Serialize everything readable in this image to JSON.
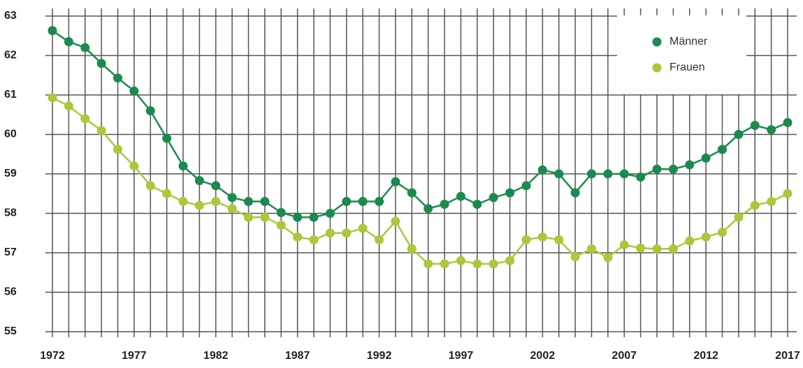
{
  "chart_data": {
    "type": "line",
    "x": [
      1972,
      1973,
      1974,
      1975,
      1976,
      1977,
      1978,
      1979,
      1980,
      1981,
      1982,
      1983,
      1984,
      1985,
      1986,
      1987,
      1988,
      1989,
      1990,
      1991,
      1992,
      1993,
      1994,
      1995,
      1996,
      1997,
      1998,
      1999,
      2000,
      2001,
      2002,
      2003,
      2004,
      2005,
      2006,
      2007,
      2008,
      2009,
      2010,
      2011,
      2012,
      2013,
      2014,
      2015,
      2016,
      2017
    ],
    "series": [
      {
        "name": "Männer",
        "color": "#1a8a4f",
        "values": [
          62.63,
          62.35,
          62.2,
          61.8,
          61.43,
          61.1,
          60.6,
          59.9,
          59.2,
          58.83,
          58.7,
          58.4,
          58.3,
          58.3,
          58.02,
          57.9,
          57.9,
          58.0,
          58.3,
          58.3,
          58.3,
          58.8,
          58.52,
          58.12,
          58.23,
          58.43,
          58.23,
          58.4,
          58.52,
          58.7,
          59.1,
          59.0,
          58.52,
          59.0,
          59.0,
          59.0,
          58.92,
          59.12,
          59.12,
          59.23,
          59.4,
          59.62,
          60.0,
          60.23,
          60.12,
          60.3
        ]
      },
      {
        "name": "Frauen",
        "color": "#a8c93a",
        "values": [
          60.93,
          60.72,
          60.4,
          60.1,
          59.62,
          59.2,
          58.7,
          58.5,
          58.3,
          58.2,
          58.3,
          58.12,
          57.9,
          57.9,
          57.7,
          57.4,
          57.33,
          57.5,
          57.5,
          57.62,
          57.33,
          57.8,
          57.1,
          56.72,
          56.72,
          56.8,
          56.72,
          56.72,
          56.8,
          57.33,
          57.4,
          57.33,
          56.9,
          57.1,
          56.88,
          57.2,
          57.12,
          57.1,
          57.1,
          57.3,
          57.4,
          57.52,
          57.9,
          58.2,
          58.3,
          58.5
        ]
      }
    ],
    "xlim": [
      1972,
      2017
    ],
    "xticks": [
      1972,
      1977,
      1982,
      1987,
      1992,
      1997,
      2002,
      2007,
      2012,
      2017
    ],
    "ylim": [
      55,
      63
    ],
    "yticks": [
      55,
      56,
      57,
      58,
      59,
      60,
      61,
      62,
      63
    ],
    "grid": true,
    "legend": "upper right"
  }
}
